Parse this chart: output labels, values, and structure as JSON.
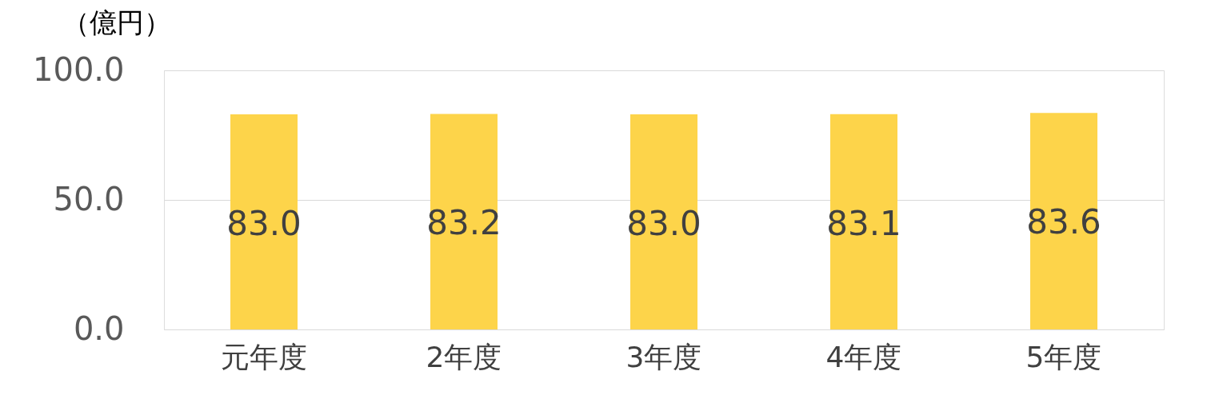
{
  "chart_data": {
    "type": "bar",
    "ylabel": "（億円）",
    "categories": [
      "元年度",
      "2年度",
      "3年度",
      "4年度",
      "5年度"
    ],
    "values": [
      83.0,
      83.2,
      83.0,
      83.1,
      83.6
    ],
    "color": "#fdd44a",
    "ylim": [
      0,
      100
    ],
    "yticks": [
      {
        "value": 0,
        "label": "0.0"
      },
      {
        "value": 50,
        "label": "50.0"
      },
      {
        "value": 100,
        "label": "100.0"
      }
    ],
    "grid": "y",
    "value_labels": [
      "83.0",
      "83.2",
      "83.0",
      "83.1",
      "83.6"
    ]
  }
}
